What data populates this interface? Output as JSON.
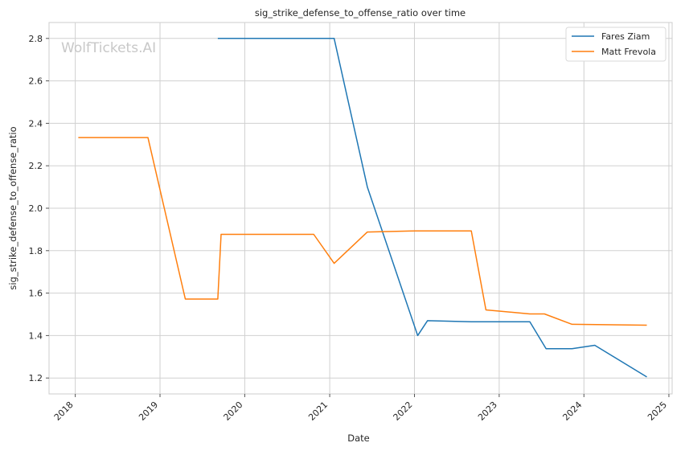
{
  "chart_data": {
    "type": "line",
    "title": "sig_strike_defense_to_offense_ratio over time",
    "xlabel": "Date",
    "ylabel": "sig_strike_defense_to_offense_ratio",
    "xlim": [
      "2017-09-10",
      "2025-01-15"
    ],
    "ylim": [
      1.125,
      2.875
    ],
    "x_ticks": [
      "2018",
      "2019",
      "2020",
      "2021",
      "2022",
      "2023",
      "2024",
      "2025"
    ],
    "y_ticks": [
      "1.2",
      "1.4",
      "1.6",
      "1.8",
      "2.0",
      "2.2",
      "2.4",
      "2.6",
      "2.8"
    ],
    "grid": true,
    "legend_position": "top-right",
    "watermark": "WolfTickets.AI",
    "series": [
      {
        "name": "Fares Ziam",
        "color": "#1f77b4",
        "points": [
          [
            "2019-09-07",
            2.8
          ],
          [
            "2021-01-20",
            2.8
          ],
          [
            "2021-06-12",
            2.1
          ],
          [
            "2022-01-15",
            1.4
          ],
          [
            "2022-02-26",
            1.47
          ],
          [
            "2022-09-03",
            1.465
          ],
          [
            "2023-05-13",
            1.465
          ],
          [
            "2023-07-22",
            1.338
          ],
          [
            "2023-11-11",
            1.338
          ],
          [
            "2024-02-17",
            1.354
          ],
          [
            "2024-09-28",
            1.205
          ]
        ]
      },
      {
        "name": "Matt Frevola",
        "color": "#ff7f0e",
        "points": [
          [
            "2018-01-14",
            2.333
          ],
          [
            "2018-11-10",
            2.333
          ],
          [
            "2019-04-20",
            1.572
          ],
          [
            "2019-09-07",
            1.572
          ],
          [
            "2019-09-21",
            1.877
          ],
          [
            "2020-10-24",
            1.877
          ],
          [
            "2021-01-20",
            1.74
          ],
          [
            "2021-06-12",
            1.888
          ],
          [
            "2022-01-08",
            1.893
          ],
          [
            "2022-09-03",
            1.893
          ],
          [
            "2022-11-05",
            1.521
          ],
          [
            "2023-05-13",
            1.502
          ],
          [
            "2023-07-15",
            1.502
          ],
          [
            "2023-11-11",
            1.453
          ],
          [
            "2024-09-28",
            1.449
          ]
        ]
      }
    ]
  }
}
